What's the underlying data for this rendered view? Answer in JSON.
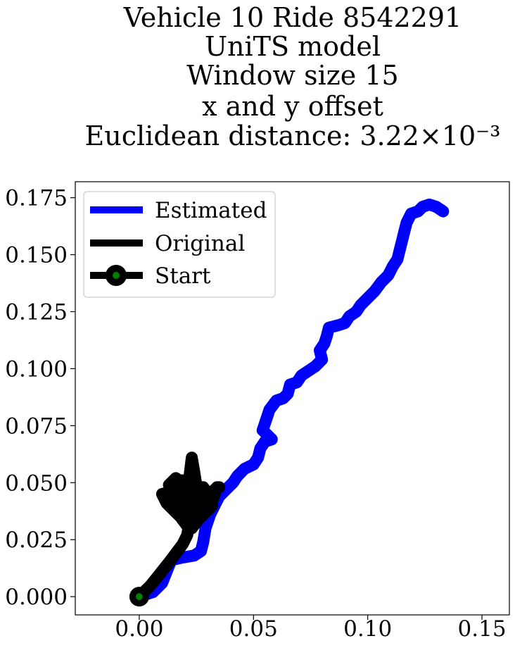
{
  "chart_data": {
    "type": "line",
    "title_lines": [
      "Vehicle 10 Ride 8542291",
      "UniTS model",
      "Window size 15",
      "x and y offset",
      "Euclidean distance: 3.22×10⁻³"
    ],
    "xlabel": "",
    "ylabel": "",
    "xlim": [
      -0.028,
      0.162
    ],
    "ylim": [
      -0.008,
      0.182
    ],
    "xticks": [
      "0.00",
      "0.05",
      "0.10",
      "0.15"
    ],
    "yticks": [
      "0.000",
      "0.025",
      "0.050",
      "0.075",
      "0.100",
      "0.125",
      "0.150",
      "0.175"
    ],
    "legend_position": "top-left",
    "series": [
      {
        "name": "Estimated",
        "color": "#0000ff",
        "points": [
          [
            0.0,
            0.0
          ],
          [
            0.006,
            0.002
          ],
          [
            0.01,
            0.006
          ],
          [
            0.012,
            0.011
          ],
          [
            0.014,
            0.016
          ],
          [
            0.018,
            0.017
          ],
          [
            0.024,
            0.018
          ],
          [
            0.027,
            0.02
          ],
          [
            0.028,
            0.024
          ],
          [
            0.029,
            0.03
          ],
          [
            0.031,
            0.036
          ],
          [
            0.033,
            0.04
          ],
          [
            0.035,
            0.044
          ],
          [
            0.038,
            0.047
          ],
          [
            0.041,
            0.05
          ],
          [
            0.043,
            0.053
          ],
          [
            0.046,
            0.056
          ],
          [
            0.05,
            0.058
          ],
          [
            0.052,
            0.061
          ],
          [
            0.053,
            0.065
          ],
          [
            0.055,
            0.068
          ],
          [
            0.058,
            0.069
          ],
          [
            0.054,
            0.073
          ],
          [
            0.056,
            0.079
          ],
          [
            0.057,
            0.082
          ],
          [
            0.06,
            0.086
          ],
          [
            0.063,
            0.087
          ],
          [
            0.065,
            0.089
          ],
          [
            0.066,
            0.093
          ],
          [
            0.069,
            0.094
          ],
          [
            0.071,
            0.097
          ],
          [
            0.074,
            0.099
          ],
          [
            0.077,
            0.101
          ],
          [
            0.08,
            0.104
          ],
          [
            0.079,
            0.108
          ],
          [
            0.081,
            0.111
          ],
          [
            0.082,
            0.114
          ],
          [
            0.083,
            0.118
          ],
          [
            0.087,
            0.119
          ],
          [
            0.09,
            0.12
          ],
          [
            0.092,
            0.123
          ],
          [
            0.095,
            0.125
          ],
          [
            0.097,
            0.128
          ],
          [
            0.1,
            0.131
          ],
          [
            0.103,
            0.134
          ],
          [
            0.106,
            0.138
          ],
          [
            0.109,
            0.141
          ],
          [
            0.111,
            0.145
          ],
          [
            0.113,
            0.148
          ],
          [
            0.114,
            0.152
          ],
          [
            0.115,
            0.156
          ],
          [
            0.116,
            0.16
          ],
          [
            0.117,
            0.164
          ],
          [
            0.119,
            0.168
          ],
          [
            0.122,
            0.169
          ],
          [
            0.124,
            0.171
          ],
          [
            0.127,
            0.172
          ],
          [
            0.13,
            0.171
          ],
          [
            0.133,
            0.169
          ]
        ]
      },
      {
        "name": "Original",
        "color": "#000000",
        "points": [
          [
            0.0,
            0.0
          ],
          [
            0.005,
            0.005
          ],
          [
            0.009,
            0.01
          ],
          [
            0.013,
            0.015
          ],
          [
            0.016,
            0.019
          ],
          [
            0.019,
            0.023
          ],
          [
            0.021,
            0.027
          ],
          [
            0.022,
            0.033
          ],
          [
            0.018,
            0.039
          ],
          [
            0.015,
            0.045
          ],
          [
            0.013,
            0.049
          ],
          [
            0.016,
            0.052
          ],
          [
            0.019,
            0.05
          ],
          [
            0.021,
            0.045
          ],
          [
            0.022,
            0.053
          ],
          [
            0.023,
            0.061
          ],
          [
            0.024,
            0.055
          ],
          [
            0.025,
            0.049
          ],
          [
            0.027,
            0.045
          ],
          [
            0.029,
            0.042
          ],
          [
            0.031,
            0.044
          ],
          [
            0.033,
            0.046
          ],
          [
            0.034,
            0.048
          ],
          [
            0.032,
            0.042
          ],
          [
            0.029,
            0.038
          ],
          [
            0.026,
            0.034
          ],
          [
            0.023,
            0.03
          ],
          [
            0.02,
            0.036
          ],
          [
            0.017,
            0.041
          ],
          [
            0.014,
            0.046
          ],
          [
            0.01,
            0.045
          ],
          [
            0.012,
            0.041
          ],
          [
            0.015,
            0.038
          ],
          [
            0.018,
            0.035
          ],
          [
            0.021,
            0.031
          ],
          [
            0.024,
            0.037
          ],
          [
            0.026,
            0.043
          ],
          [
            0.028,
            0.048
          ],
          [
            0.03,
            0.045
          ],
          [
            0.032,
            0.04
          ],
          [
            0.028,
            0.036
          ],
          [
            0.025,
            0.033
          ],
          [
            0.022,
            0.04
          ],
          [
            0.02,
            0.047
          ],
          [
            0.019,
            0.051
          ],
          [
            0.018,
            0.046
          ],
          [
            0.021,
            0.042
          ],
          [
            0.024,
            0.045
          ],
          [
            0.027,
            0.041
          ],
          [
            0.03,
            0.043
          ],
          [
            0.033,
            0.047
          ],
          [
            0.035,
            0.048
          ]
        ]
      },
      {
        "name": "Start",
        "color": "#000000",
        "marker_fill": "#008000",
        "points": [
          [
            0.0,
            0.0
          ]
        ]
      }
    ]
  }
}
